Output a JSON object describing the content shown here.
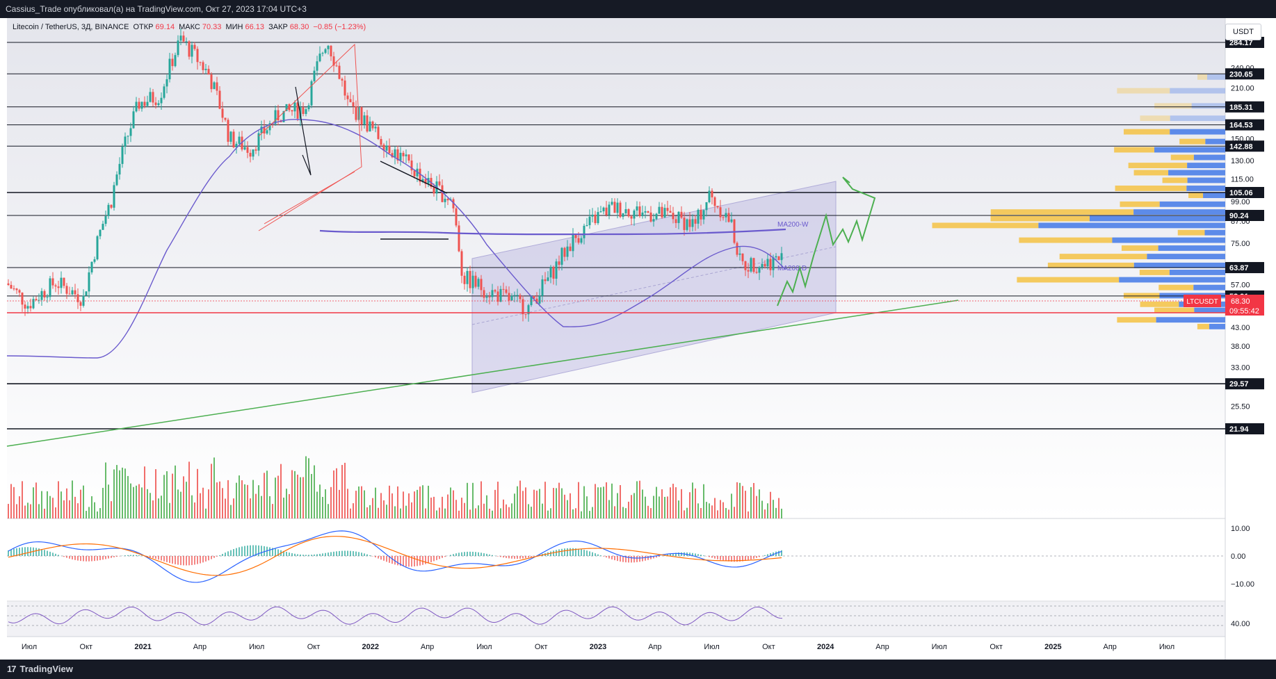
{
  "header": {
    "publish_line": "Cassius_Trade опубликовал(а) на TradingView.com, Окт 27, 2023 17:04 UTC+3"
  },
  "footer": {
    "brand": "TradingView",
    "brand_mark": "17"
  },
  "legend": {
    "symbol": "Litecoin / TetherUS, 3Д, BINANCE",
    "open_label": "ОТКР",
    "open": "69.14",
    "high_label": "МАКС",
    "high": "70.33",
    "low_label": "МИН",
    "low": "66.13",
    "close_label": "ЗАКР",
    "close": "68.30",
    "change": "−0.85 (−1.23%)"
  },
  "currency_button": "USDT",
  "colors": {
    "up": "#26a69a",
    "down": "#ef5350",
    "ma": "#6a5acd",
    "trend": "#4caf50",
    "vp_buy": "#4d7fe8",
    "vp_sell": "#f5c243",
    "price_tag": "#f23645",
    "macd": "#2962ff",
    "signal": "#ff6d00",
    "rsi": "#7e57c2"
  },
  "chart_data": {
    "type": "candlestick",
    "symbol": "LTCUSDT",
    "timeframe": "3D",
    "y_scale": "log",
    "price_axis_ticks": [
      "240.00",
      "210.00",
      "150.00",
      "130.00",
      "115.00",
      "99.00",
      "87.00",
      "75.00",
      "57.00",
      "49.00",
      "43.00",
      "38.00",
      "33.00",
      "25.50"
    ],
    "x_axis_ticks": [
      "Июл",
      "Окт",
      "2021",
      "Апр",
      "Июл",
      "Окт",
      "2022",
      "Апр",
      "Июл",
      "Окт",
      "2023",
      "Апр",
      "Июл",
      "Окт",
      "2024",
      "Апр",
      "Июл",
      "Окт",
      "2025",
      "Апр",
      "Июл"
    ],
    "horizontal_levels": [
      "284.17",
      "230.65",
      "185.31",
      "164.53",
      "142.88",
      "105.06",
      "90.24",
      "63.87",
      "52.91",
      "29.57",
      "21.94"
    ],
    "last_price": {
      "symbol": "LTCUSDT",
      "price": "68.30",
      "countdown": "09:55:42"
    },
    "ma_labels": {
      "weekly": "MA200-W",
      "daily": "MA200-D"
    },
    "macd_ticks": [
      "10.00",
      "0.00",
      "−10.00"
    ],
    "rsi_ticks": [
      "40.00"
    ]
  }
}
